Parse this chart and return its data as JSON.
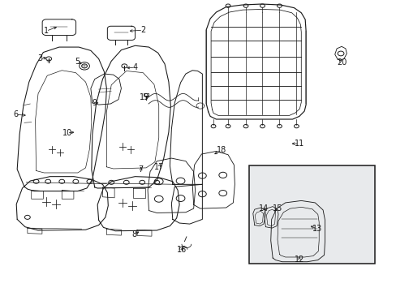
{
  "bg_color": "#ffffff",
  "line_color": "#1a1a1a",
  "box_fill": "#e8eaec",
  "fig_width": 4.89,
  "fig_height": 3.6,
  "dpi": 100,
  "font_size": 7.0,
  "lw": 0.7,
  "labels": {
    "1": [
      0.115,
      0.895,
      0.148,
      0.912
    ],
    "2": [
      0.36,
      0.898,
      0.32,
      0.895
    ],
    "3": [
      0.1,
      0.8,
      0.122,
      0.805
    ],
    "4": [
      0.34,
      0.77,
      0.313,
      0.768
    ],
    "5": [
      0.195,
      0.79,
      0.21,
      0.778
    ],
    "6": [
      0.038,
      0.608,
      0.07,
      0.605
    ],
    "7": [
      0.355,
      0.418,
      0.355,
      0.435
    ],
    "8": [
      0.338,
      0.195,
      0.355,
      0.21
    ],
    "9": [
      0.238,
      0.648,
      0.248,
      0.648
    ],
    "10": [
      0.168,
      0.545,
      0.192,
      0.548
    ],
    "11": [
      0.755,
      0.508,
      0.73,
      0.508
    ],
    "12": [
      0.755,
      0.11,
      0.755,
      0.128
    ],
    "13": [
      0.8,
      0.215,
      0.778,
      0.228
    ],
    "14": [
      0.665,
      0.285,
      0.672,
      0.272
    ],
    "15": [
      0.7,
      0.285,
      0.688,
      0.272
    ],
    "16": [
      0.458,
      0.142,
      0.465,
      0.158
    ],
    "17": [
      0.4,
      0.428,
      0.408,
      0.445
    ],
    "18": [
      0.558,
      0.485,
      0.535,
      0.468
    ],
    "19": [
      0.363,
      0.668,
      0.38,
      0.668
    ],
    "20": [
      0.862,
      0.788,
      0.855,
      0.798
    ]
  }
}
